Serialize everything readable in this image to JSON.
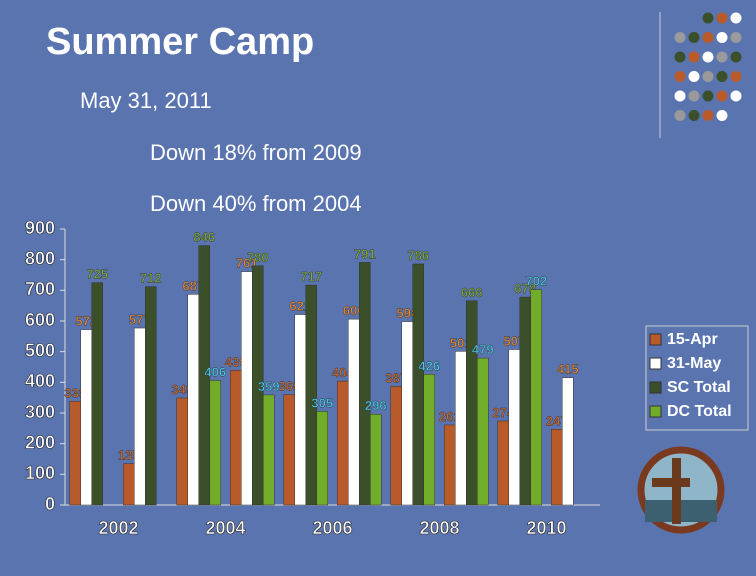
{
  "slide": {
    "title": "Summer Camp",
    "lines": [
      "May 31, 2011",
      "Down 18% from 2009",
      "Down 40% from 2004"
    ]
  },
  "chart_data": {
    "type": "bar",
    "categories": [
      "2002",
      null,
      "2004",
      null,
      "2006",
      null,
      "2008",
      null,
      "2010",
      null
    ],
    "series": [
      {
        "name": "15-Apr",
        "color": "#b85a2a",
        "label_color": "#c86a30",
        "values": [
          338,
          135,
          349,
          439,
          360,
          404,
          387,
          261,
          274,
          247
        ]
      },
      {
        "name": "31-May",
        "color": "#ffffff",
        "label_color": "#e0883a",
        "values": [
          572,
          577,
          687,
          761,
          621,
          606,
          598,
          501,
          507,
          415
        ]
      },
      {
        "name": "SC Total",
        "color": "#3a4f2a",
        "label_color": "#79a83e",
        "values": [
          725,
          712,
          846,
          780,
          717,
          791,
          786,
          666,
          678,
          null
        ]
      },
      {
        "name": "DC Total",
        "color": "#72ad2a",
        "label_color": "#46c6e6",
        "values": [
          null,
          null,
          406,
          359,
          305,
          296,
          426,
          479,
          702,
          null
        ]
      }
    ],
    "ylim": [
      0,
      900
    ],
    "yticks": [
      0,
      100,
      200,
      300,
      400,
      500,
      600,
      700,
      800,
      900
    ],
    "grid": false,
    "legend": "right"
  }
}
